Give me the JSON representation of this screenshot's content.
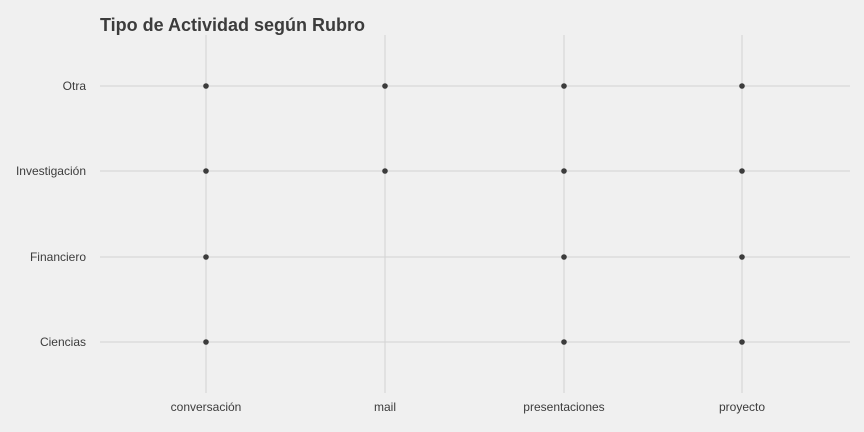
{
  "chart_data": {
    "type": "scatter",
    "title": "Tipo de Actividad según Rubro",
    "xlabel": "",
    "ylabel": "",
    "x_categories": [
      "conversación",
      "mail",
      "presentaciones",
      "proyecto"
    ],
    "y_categories": [
      "Ciencias",
      "Financiero",
      "Investigación",
      "Otra"
    ],
    "points": [
      {
        "x": "conversación",
        "y": "Otra"
      },
      {
        "x": "mail",
        "y": "Otra"
      },
      {
        "x": "presentaciones",
        "y": "Otra"
      },
      {
        "x": "proyecto",
        "y": "Otra"
      },
      {
        "x": "conversación",
        "y": "Investigación"
      },
      {
        "x": "mail",
        "y": "Investigación"
      },
      {
        "x": "presentaciones",
        "y": "Investigación"
      },
      {
        "x": "proyecto",
        "y": "Investigación"
      },
      {
        "x": "conversación",
        "y": "Financiero"
      },
      {
        "x": "presentaciones",
        "y": "Financiero"
      },
      {
        "x": "proyecto",
        "y": "Financiero"
      },
      {
        "x": "conversación",
        "y": "Ciencias"
      },
      {
        "x": "presentaciones",
        "y": "Ciencias"
      },
      {
        "x": "proyecto",
        "y": "Ciencias"
      }
    ],
    "grid": true,
    "legend": "none",
    "colors": {
      "background": "#f0f0f0",
      "grid": "#d2d2d2",
      "point": "#3c3c3c",
      "text": "#3c3c3c"
    }
  }
}
